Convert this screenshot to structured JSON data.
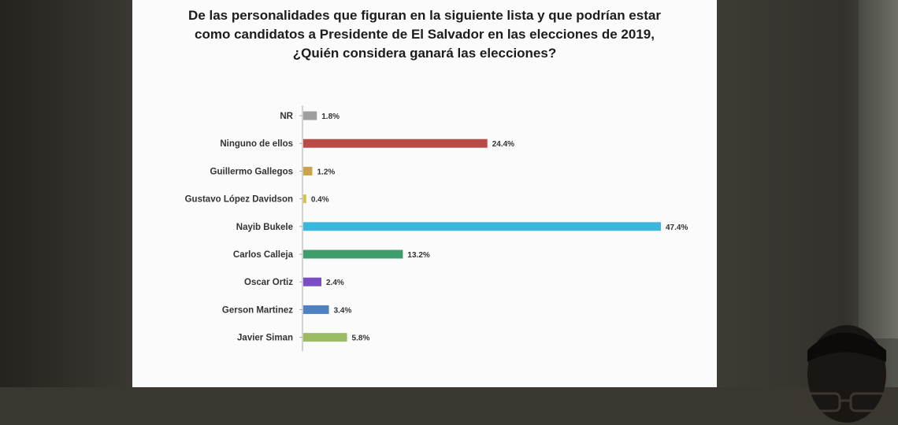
{
  "slide": {
    "title_lines": [
      "De las personalidades que figuran en la siguiente lista y que podrían estar",
      "como candidatos a Presidente de El Salvador en las elecciones de 2019,",
      "¿Quién considera ganará las elecciones?"
    ]
  },
  "chart_data": {
    "type": "bar",
    "orientation": "horizontal",
    "title": "De las personalidades que figuran en la siguiente lista y que podrían estar como candidatos a Presidente de El Salvador en las elecciones de 2019, ¿Quién considera ganará las elecciones?",
    "categories": [
      "NR",
      "Ninguno de ellos",
      "Guillermo Gallegos",
      "Gustavo López Davidson",
      "Nayib Bukele",
      "Carlos Calleja",
      "Oscar Ortiz",
      "Gerson Martinez",
      "Javier Siman"
    ],
    "values": [
      1.8,
      24.4,
      1.2,
      0.4,
      47.4,
      13.2,
      2.4,
      3.4,
      5.8
    ],
    "value_labels": [
      "1.8%",
      "24.4%",
      "1.2%",
      "0.4%",
      "47.4%",
      "13.2%",
      "2.4%",
      "3.4%",
      "5.8%"
    ],
    "colors": [
      "#9e9e9e",
      "#b94a46",
      "#c9a44a",
      "#d4c24a",
      "#3fb6dd",
      "#3d9e6b",
      "#7b4dc4",
      "#4f80c2",
      "#9bbb64"
    ],
    "xlim": [
      0,
      47.4
    ],
    "grid": false,
    "legend": "none"
  }
}
